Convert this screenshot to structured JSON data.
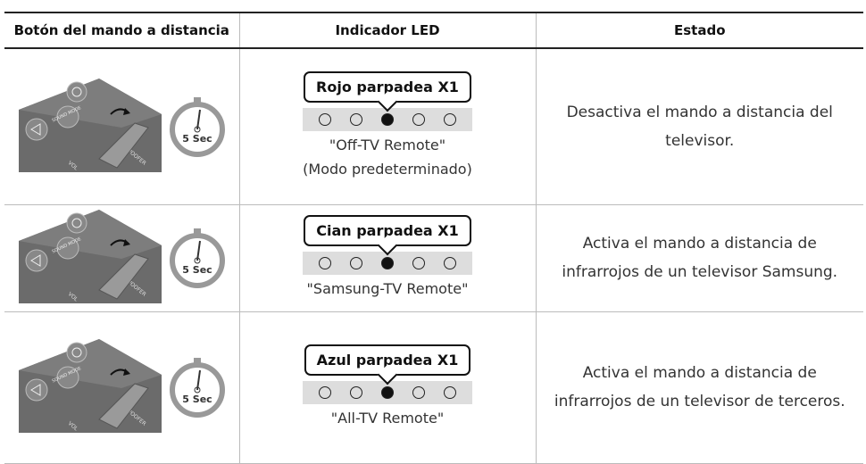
{
  "header": {
    "columns": [
      "Botón del mando a distancia",
      "Indicador LED",
      "Estado"
    ]
  },
  "illustration": {
    "timer": "5 Sec",
    "sound_mode": "SOUND MODE",
    "woofer": "WOOFER",
    "vol": "VOL"
  },
  "table": {
    "rows": [
      {
        "led_label": "Rojo parpadea X1",
        "mode": "\"Off-TV Remote\"",
        "note": "(Modo predeterminado)",
        "status": "Desactiva el mando a distancia del televisor."
      },
      {
        "led_label": "Cian parpadea X1",
        "mode": "\"Samsung-TV Remote\"",
        "status": "Activa el mando a distancia de infrarrojos de un televisor Samsung."
      },
      {
        "led_label": "Azul parpadea X1",
        "mode": "\"All-TV Remote\"",
        "status": "Activa el mando a distancia de infrarrojos de un televisor de terceros."
      }
    ]
  }
}
